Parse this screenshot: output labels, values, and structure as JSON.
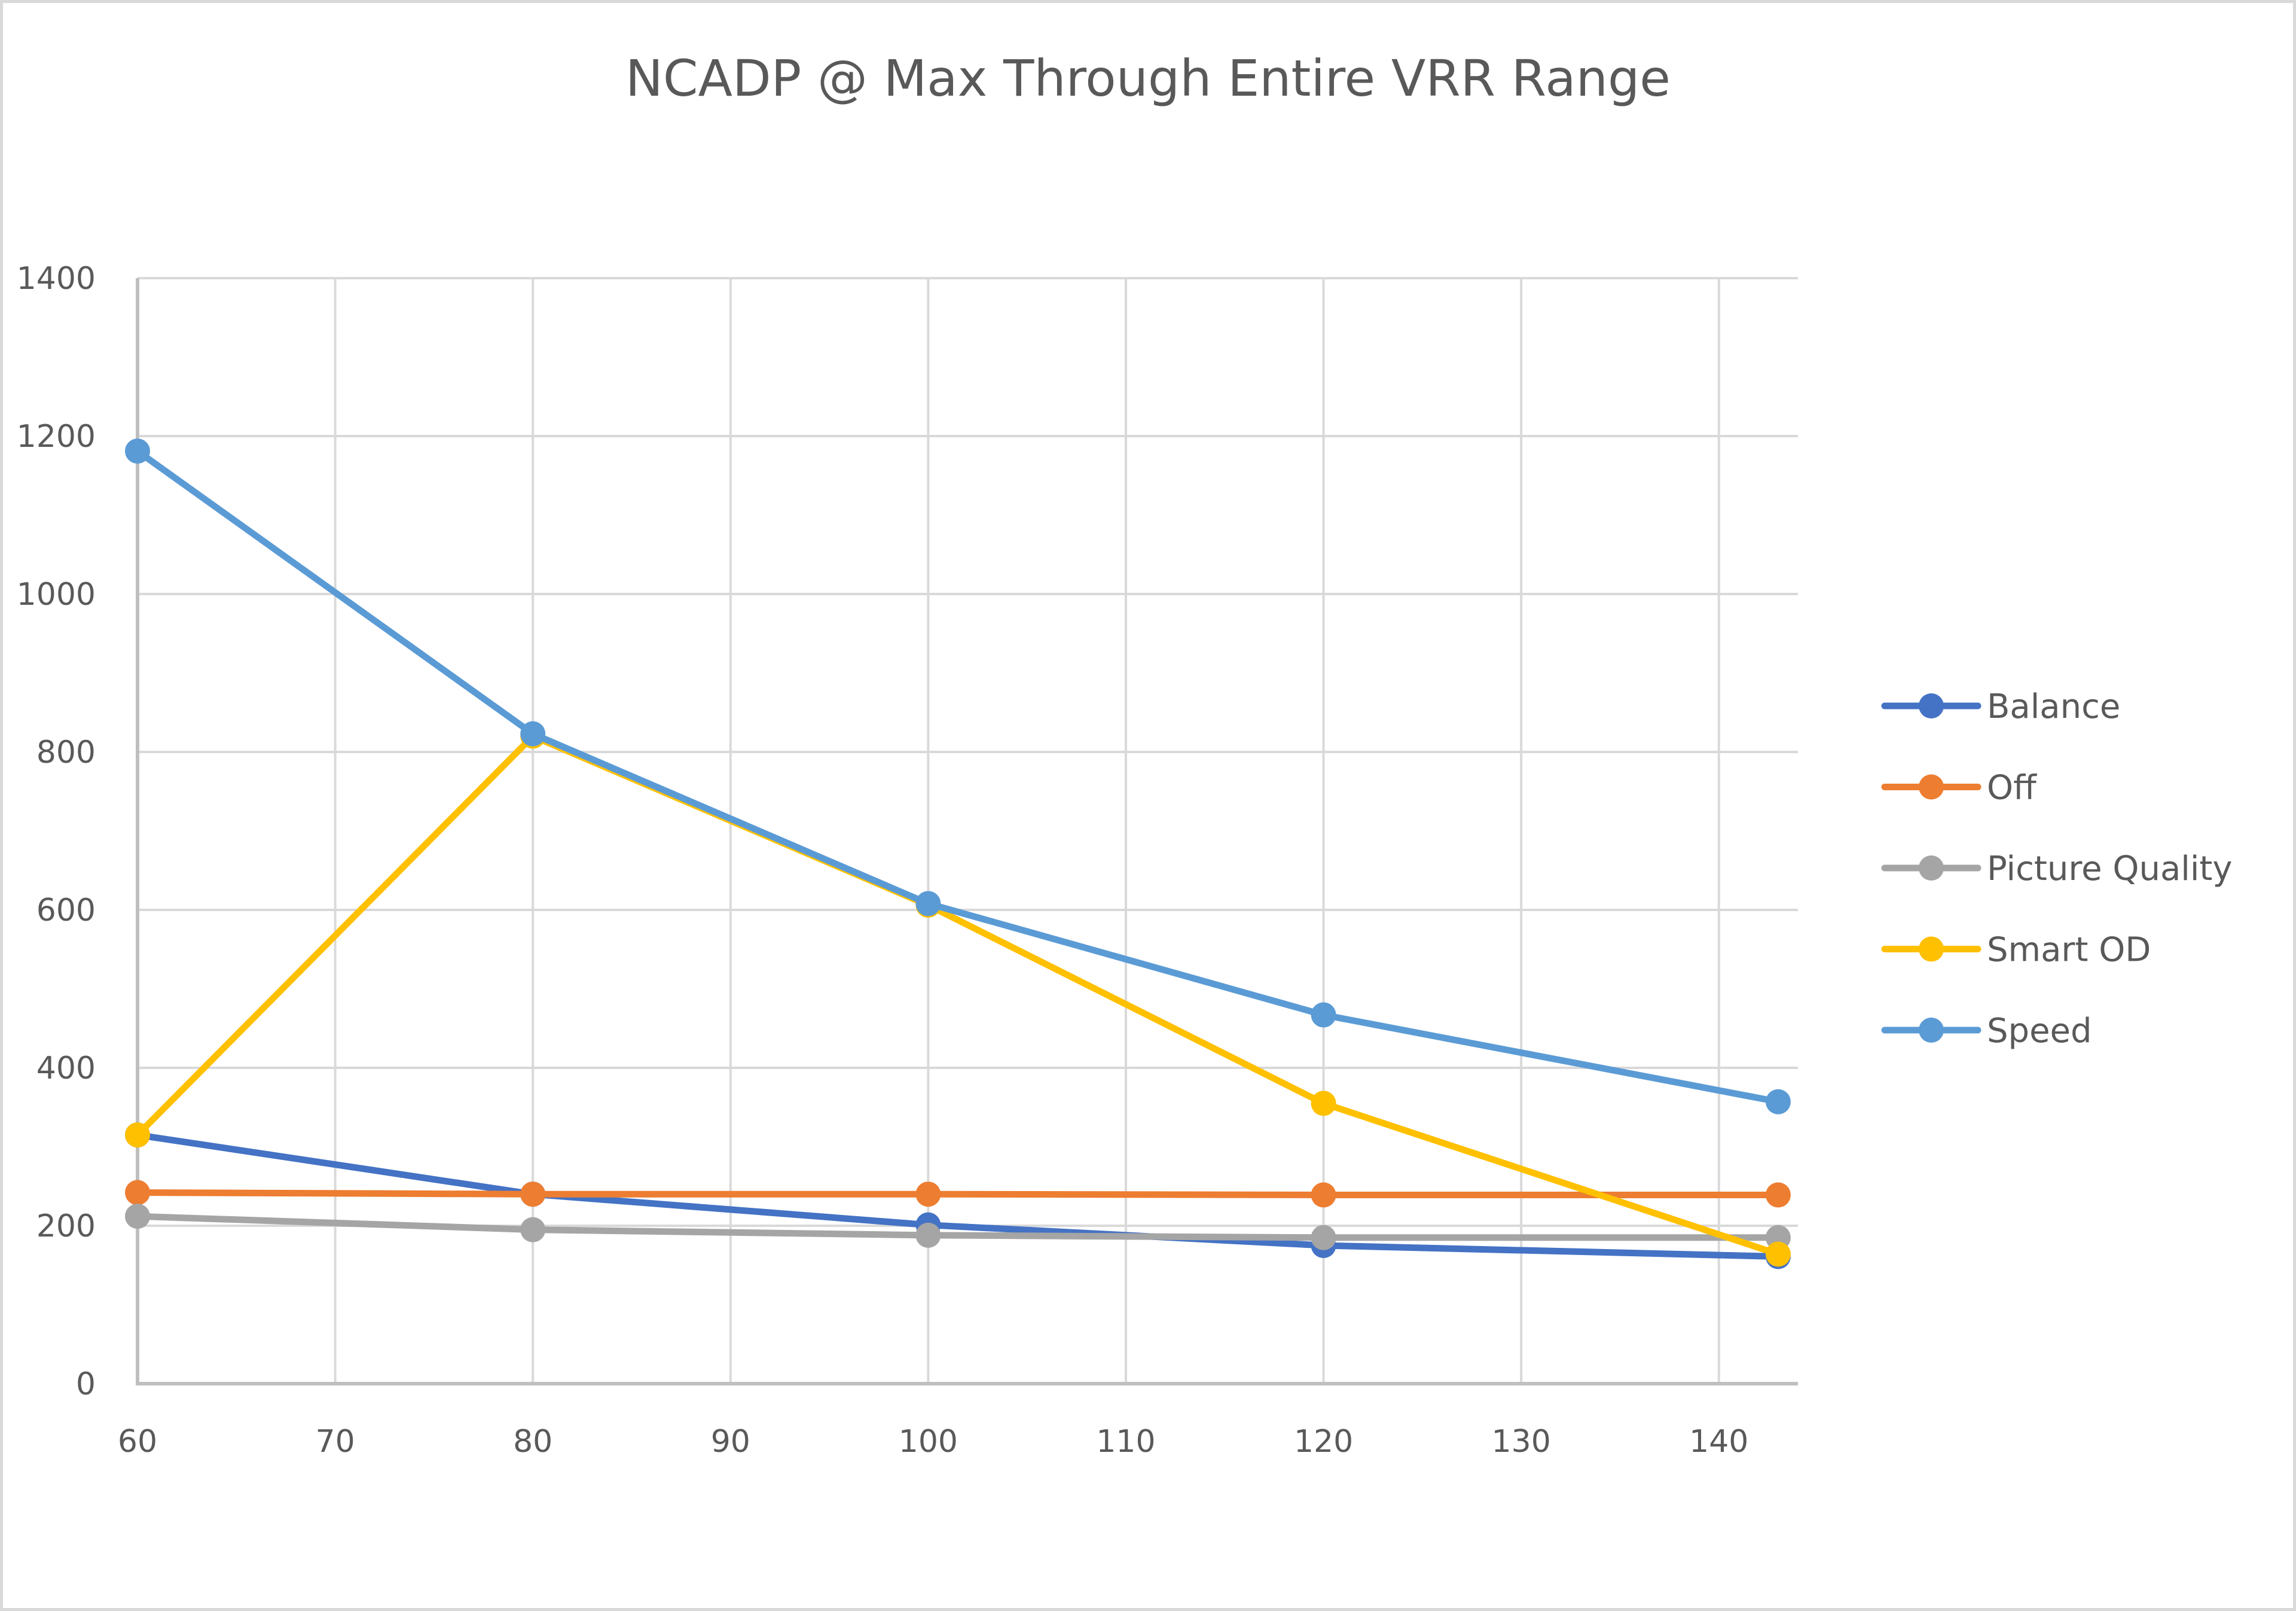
{
  "chart_data": {
    "type": "line",
    "title": "NCADP @ Max Through Entire VRR Range",
    "xlabel": "",
    "ylabel": "",
    "xlim": [
      60,
      144
    ],
    "ylim": [
      0,
      1400
    ],
    "x_ticks": [
      60,
      70,
      80,
      90,
      100,
      110,
      120,
      130,
      140
    ],
    "y_ticks": [
      0,
      200,
      400,
      600,
      800,
      1000,
      1200,
      1400
    ],
    "grid": true,
    "legend_position": "right",
    "x": [
      60,
      80,
      100,
      120,
      143
    ],
    "series": [
      {
        "name": "Balance",
        "color": "#4472c4",
        "values": [
          315,
          240,
          201,
          175,
          161
        ]
      },
      {
        "name": "Off",
        "color": "#ed7d31",
        "values": [
          242,
          240,
          240,
          239,
          239
        ]
      },
      {
        "name": "Picture Quality",
        "color": "#a5a5a5",
        "values": [
          212,
          195,
          188,
          185,
          185
        ]
      },
      {
        "name": "Smart OD",
        "color": "#ffc000",
        "values": [
          315,
          820,
          606,
          355,
          164
        ]
      },
      {
        "name": "Speed",
        "color": "#5b9bd5",
        "values": [
          1181,
          823,
          608,
          467,
          357
        ]
      }
    ]
  }
}
